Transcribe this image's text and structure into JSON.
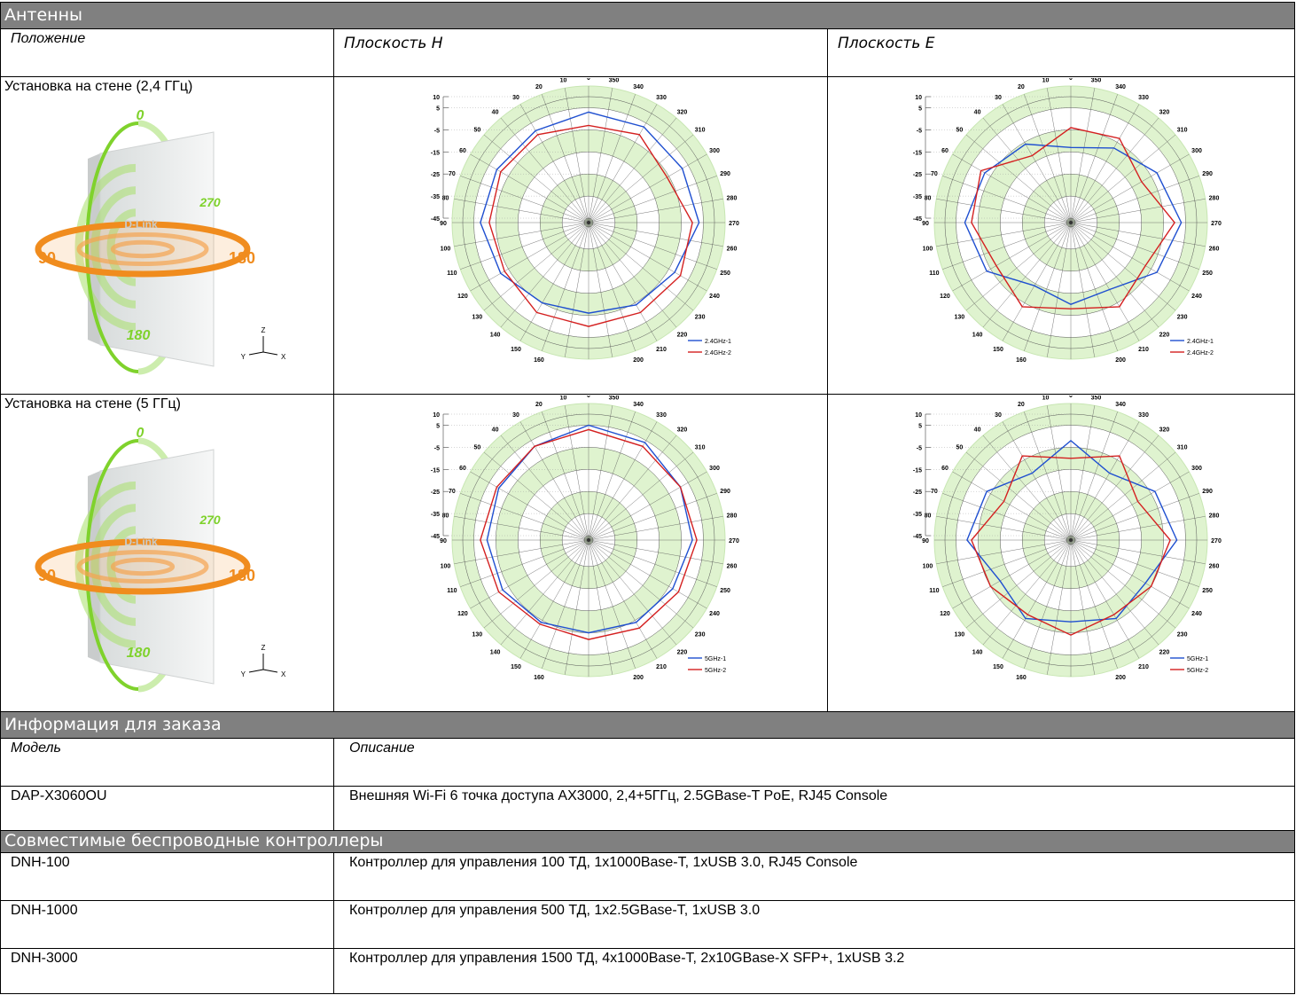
{
  "antennas": {
    "title": "Антенны",
    "headers": [
      "Положение",
      "Плоскость H",
      "Плоскость E"
    ],
    "rows": [
      {
        "label": "Установка на стене (2,4 ГГц)",
        "h_plane": {
          "type": "polar",
          "series": [
            {
              "name": "2.4GHz-1",
              "color": "#1f4fd0",
              "values": [
                3,
                1,
                1,
                2,
                -1,
                -5,
                -6,
                -4,
                -2,
                3,
                2,
                3
              ]
            },
            {
              "name": "2.4GHz-2",
              "color": "#d42020",
              "values": [
                -3,
                -1,
                -1,
                -2,
                -3,
                0,
                0,
                0,
                1,
                0,
                -6,
                -1
              ]
            }
          ]
        },
        "e_plane": {
          "type": "polar",
          "series": [
            {
              "name": "2.4GHz-1",
              "color": "#1f4fd0",
              "values": [
                -13,
                -6,
                -2,
                1,
                -3,
                -14,
                -10,
                -12,
                -2,
                3,
                -2,
                -8
              ]
            },
            {
              "name": "2.4GHz-2",
              "color": "#d42020",
              "values": [
                -4,
                -12,
                0,
                -2,
                -8,
                -3,
                -8,
                -3,
                -8,
                0,
                -10,
                -3
              ]
            }
          ]
        }
      },
      {
        "label": "Установка на стене (5 ГГц)",
        "h_plane": {
          "type": "polar",
          "series": [
            {
              "name": "5GHz-1",
              "color": "#1f4fd0",
              "values": [
                5,
                2,
                0,
                -1,
                -2,
                -4,
                -5,
                -4,
                -3,
                0,
                1,
                4
              ]
            },
            {
              "name": "5GHz-2",
              "color": "#d42020",
              "values": [
                3,
                2,
                1,
                2,
                0,
                -3,
                -2,
                -1,
                0,
                2,
                1,
                2
              ]
            }
          ]
        },
        "e_plane": {
          "type": "polar",
          "series": [
            {
              "name": "5GHz-1",
              "color": "#1f4fd0",
              "values": [
                -2,
                -12,
                -3,
                0,
                -10,
                -6,
                -10,
                -6,
                -8,
                1,
                -3,
                -12
              ]
            },
            {
              "name": "5GHz-2",
              "color": "#d42020",
              "values": [
                -10,
                -3,
                -12,
                -2,
                -5,
                -8,
                -4,
                -8,
                -5,
                -2,
                -12,
                -3
              ]
            }
          ]
        }
      }
    ]
  },
  "polar_axes": {
    "angles": [
      0,
      10,
      20,
      30,
      40,
      50,
      60,
      70,
      80,
      90,
      100,
      110,
      120,
      130,
      140,
      150,
      160,
      170,
      180,
      190,
      200,
      210,
      220,
      230,
      240,
      250,
      260,
      270,
      280,
      290,
      300,
      310,
      320,
      330,
      340,
      350
    ],
    "theta": [
      0,
      30,
      60,
      90,
      120,
      150,
      180,
      210,
      240,
      270,
      300,
      330
    ],
    "rlim": [
      -47,
      10
    ],
    "rticks": [
      10,
      5,
      -5,
      -15,
      -25,
      -35,
      -45
    ]
  },
  "antenna_diagram": {
    "brand": "D-Link",
    "vertical_labels": [
      "0",
      "270",
      "180"
    ],
    "horizontal_labels": [
      "90",
      "180"
    ],
    "axes": [
      "Z",
      "Y",
      "X"
    ]
  },
  "ordering": {
    "title": "Информация для заказа",
    "headers": [
      "Модель",
      "Описание"
    ],
    "rows": [
      [
        "DAP-X3060OU",
        "Внешняя Wi-Fi 6 точка доступа AX3000, 2,4+5ГГц, 2.5GBase-T PoE, RJ45 Console"
      ]
    ]
  },
  "controllers": {
    "title": "Совместимые беспроводные контроллеры",
    "rows": [
      [
        "DNH-100",
        "Контроллер для управления 100 ТД, 1x1000Base-T, 1xUSB 3.0, RJ45 Console"
      ],
      [
        "DNH-1000",
        "Контроллер для управления 500 ТД, 1x2.5GBase-T, 1xUSB 3.0"
      ],
      [
        "DNH-3000",
        "Контроллер для управления 1500 ТД, 4x1000Base-T, 2x10GBase-X SFP+, 1xUSB 3.2"
      ]
    ]
  }
}
